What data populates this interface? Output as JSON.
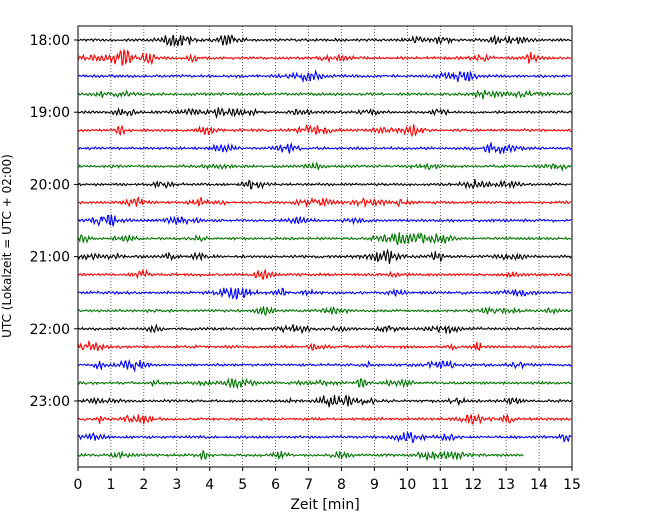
{
  "chart_data": {
    "type": "line",
    "title": "",
    "xlabel": "Zeit  [min]",
    "ylabel": "UTC (Lokalzeit = UTC + 02:00)",
    "xlim": [
      0,
      15
    ],
    "x_ticks": [
      "0",
      "1",
      "2",
      "3",
      "4",
      "5",
      "6",
      "7",
      "8",
      "9",
      "10",
      "11",
      "12",
      "13",
      "14",
      "15"
    ],
    "y_tick_labels": [
      "18:00",
      "19:00",
      "20:00",
      "21:00",
      "22:00",
      "23:00"
    ],
    "grid": "vertical dotted lines at each minute",
    "trace_colors": [
      "#000000",
      "#ff0000",
      "#0000ff",
      "#007700"
    ],
    "traces": [
      {
        "start": "18:00",
        "x_end": 15
      },
      {
        "start": "18:15",
        "x_end": 15
      },
      {
        "start": "18:30",
        "x_end": 15
      },
      {
        "start": "18:45",
        "x_end": 15
      },
      {
        "start": "19:00",
        "x_end": 15
      },
      {
        "start": "19:15",
        "x_end": 15
      },
      {
        "start": "19:30",
        "x_end": 15
      },
      {
        "start": "19:45",
        "x_end": 15
      },
      {
        "start": "20:00",
        "x_end": 15
      },
      {
        "start": "20:15",
        "x_end": 15
      },
      {
        "start": "20:30",
        "x_end": 15
      },
      {
        "start": "20:45",
        "x_end": 15
      },
      {
        "start": "21:00",
        "x_end": 15
      },
      {
        "start": "21:15",
        "x_end": 15
      },
      {
        "start": "21:30",
        "x_end": 15
      },
      {
        "start": "21:45",
        "x_end": 15
      },
      {
        "start": "22:00",
        "x_end": 15
      },
      {
        "start": "22:15",
        "x_end": 15
      },
      {
        "start": "22:30",
        "x_end": 15
      },
      {
        "start": "22:45",
        "x_end": 15
      },
      {
        "start": "23:00",
        "x_end": 15
      },
      {
        "start": "23:15",
        "x_end": 15
      },
      {
        "start": "23:30",
        "x_end": 15
      },
      {
        "start": "23:45",
        "x_end": 13.55
      }
    ]
  }
}
